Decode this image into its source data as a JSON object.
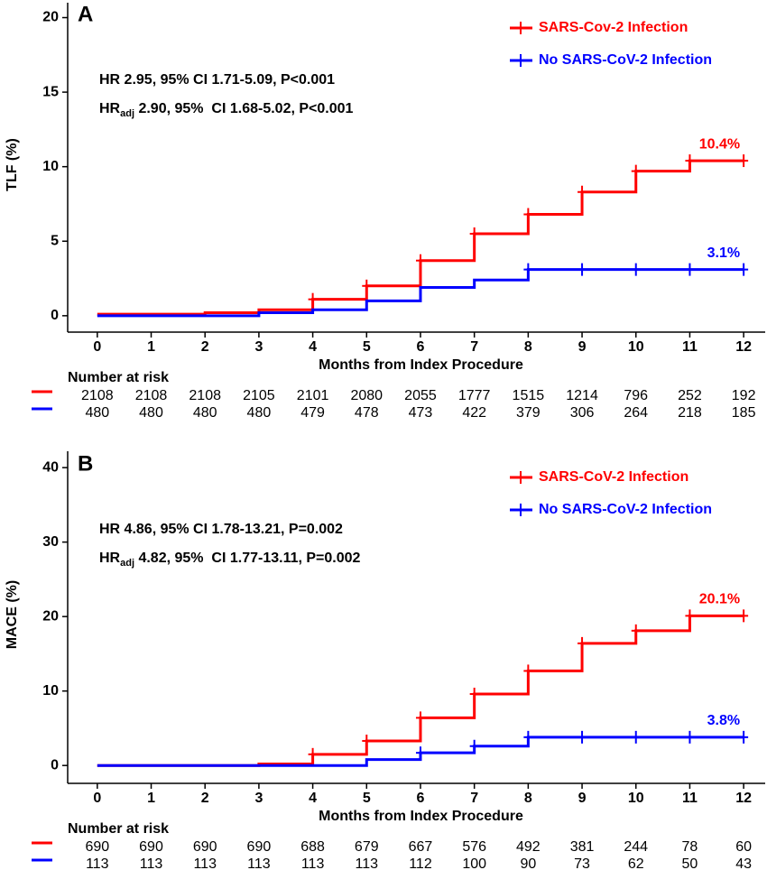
{
  "chart_data": [
    {
      "type": "step",
      "panel": "A",
      "y_label": "TLF (%)",
      "x_label": "Months from Index Procedure",
      "hr": "HR 2.95, 95%  CI 1.71-5.09, P<0.001",
      "hr_adj": {
        "prefix": "HR",
        "sub": "adj",
        "rest": " 2.90, 95%  CI 1.68-5.02, P<0.001"
      },
      "risk_title": "Number at risk",
      "x": [
        0,
        1,
        2,
        3,
        4,
        5,
        6,
        7,
        8,
        9,
        10,
        11,
        12
      ],
      "xlim": [
        -0.55,
        12.4
      ],
      "xticks": [
        0,
        1,
        2,
        3,
        4,
        5,
        6,
        7,
        8,
        9,
        10,
        11,
        12
      ],
      "ylim": [
        -1.1,
        21
      ],
      "yticks": [
        0,
        5,
        10,
        15,
        20
      ],
      "series": [
        {
          "name": "SARS-Cov-2 Infection",
          "color": "#ff0000",
          "end_label": "10.4%",
          "values": [
            0.1,
            0.1,
            0.2,
            0.4,
            1.1,
            2.0,
            3.7,
            5.5,
            6.8,
            8.3,
            9.7,
            10.4,
            10.4
          ],
          "censor": [
            4,
            5,
            6,
            7,
            8,
            9,
            10,
            11,
            12
          ],
          "risk": [
            "2108",
            "2108",
            "2108",
            "2105",
            "2101",
            "2080",
            "2055",
            "1777",
            "1515",
            "1214",
            "796",
            "252",
            "192"
          ]
        },
        {
          "name": "No SARS-CoV-2 Infection",
          "color": "#0000ff",
          "end_label": "3.1%",
          "values": [
            0,
            0,
            0,
            0.2,
            0.4,
            1.0,
            1.9,
            2.4,
            3.1,
            3.1,
            3.1,
            3.1,
            3.1
          ],
          "censor": [
            8,
            9,
            10,
            11,
            12
          ],
          "risk": [
            "480",
            "480",
            "480",
            "480",
            "479",
            "478",
            "473",
            "422",
            "379",
            "306",
            "264",
            "218",
            "185"
          ]
        }
      ]
    },
    {
      "type": "step",
      "panel": "B",
      "y_label": "MACE (%)",
      "x_label": "Months from Index Procedure",
      "hr": "HR 4.86, 95%  CI 1.78-13.21, P=0.002",
      "hr_adj": {
        "prefix": "HR",
        "sub": "adj",
        "rest": " 4.82, 95%  CI 1.77-13.11, P=0.002"
      },
      "risk_title": "Number at risk",
      "x": [
        0,
        1,
        2,
        3,
        4,
        5,
        6,
        7,
        8,
        9,
        10,
        11,
        12
      ],
      "xlim": [
        -0.55,
        12.4
      ],
      "xticks": [
        0,
        1,
        2,
        3,
        4,
        5,
        6,
        7,
        8,
        9,
        10,
        11,
        12
      ],
      "ylim": [
        -2.4,
        42.2
      ],
      "yticks": [
        0,
        10,
        20,
        30,
        40
      ],
      "series": [
        {
          "name": "SARS-CoV-2 Infection",
          "color": "#ff0000",
          "end_label": "20.1%",
          "values": [
            0,
            0,
            0,
            0.2,
            1.5,
            3.3,
            6.4,
            9.6,
            12.7,
            16.4,
            18.1,
            20.1,
            20.1
          ],
          "censor": [
            4,
            5,
            6,
            7,
            8,
            9,
            10,
            11,
            12
          ],
          "risk": [
            "690",
            "690",
            "690",
            "690",
            "688",
            "679",
            "667",
            "576",
            "492",
            "381",
            "244",
            "78",
            "60"
          ]
        },
        {
          "name": "No SARS-CoV-2 Infection",
          "color": "#0000ff",
          "end_label": "3.8%",
          "values": [
            0,
            0,
            0,
            0,
            0,
            0.8,
            1.7,
            2.6,
            3.8,
            3.8,
            3.8,
            3.8,
            3.8
          ],
          "censor": [
            6,
            7,
            8,
            9,
            10,
            11,
            12
          ],
          "risk": [
            "113",
            "113",
            "113",
            "113",
            "113",
            "113",
            "112",
            "100",
            "90",
            "73",
            "62",
            "50",
            "43"
          ]
        }
      ]
    }
  ]
}
